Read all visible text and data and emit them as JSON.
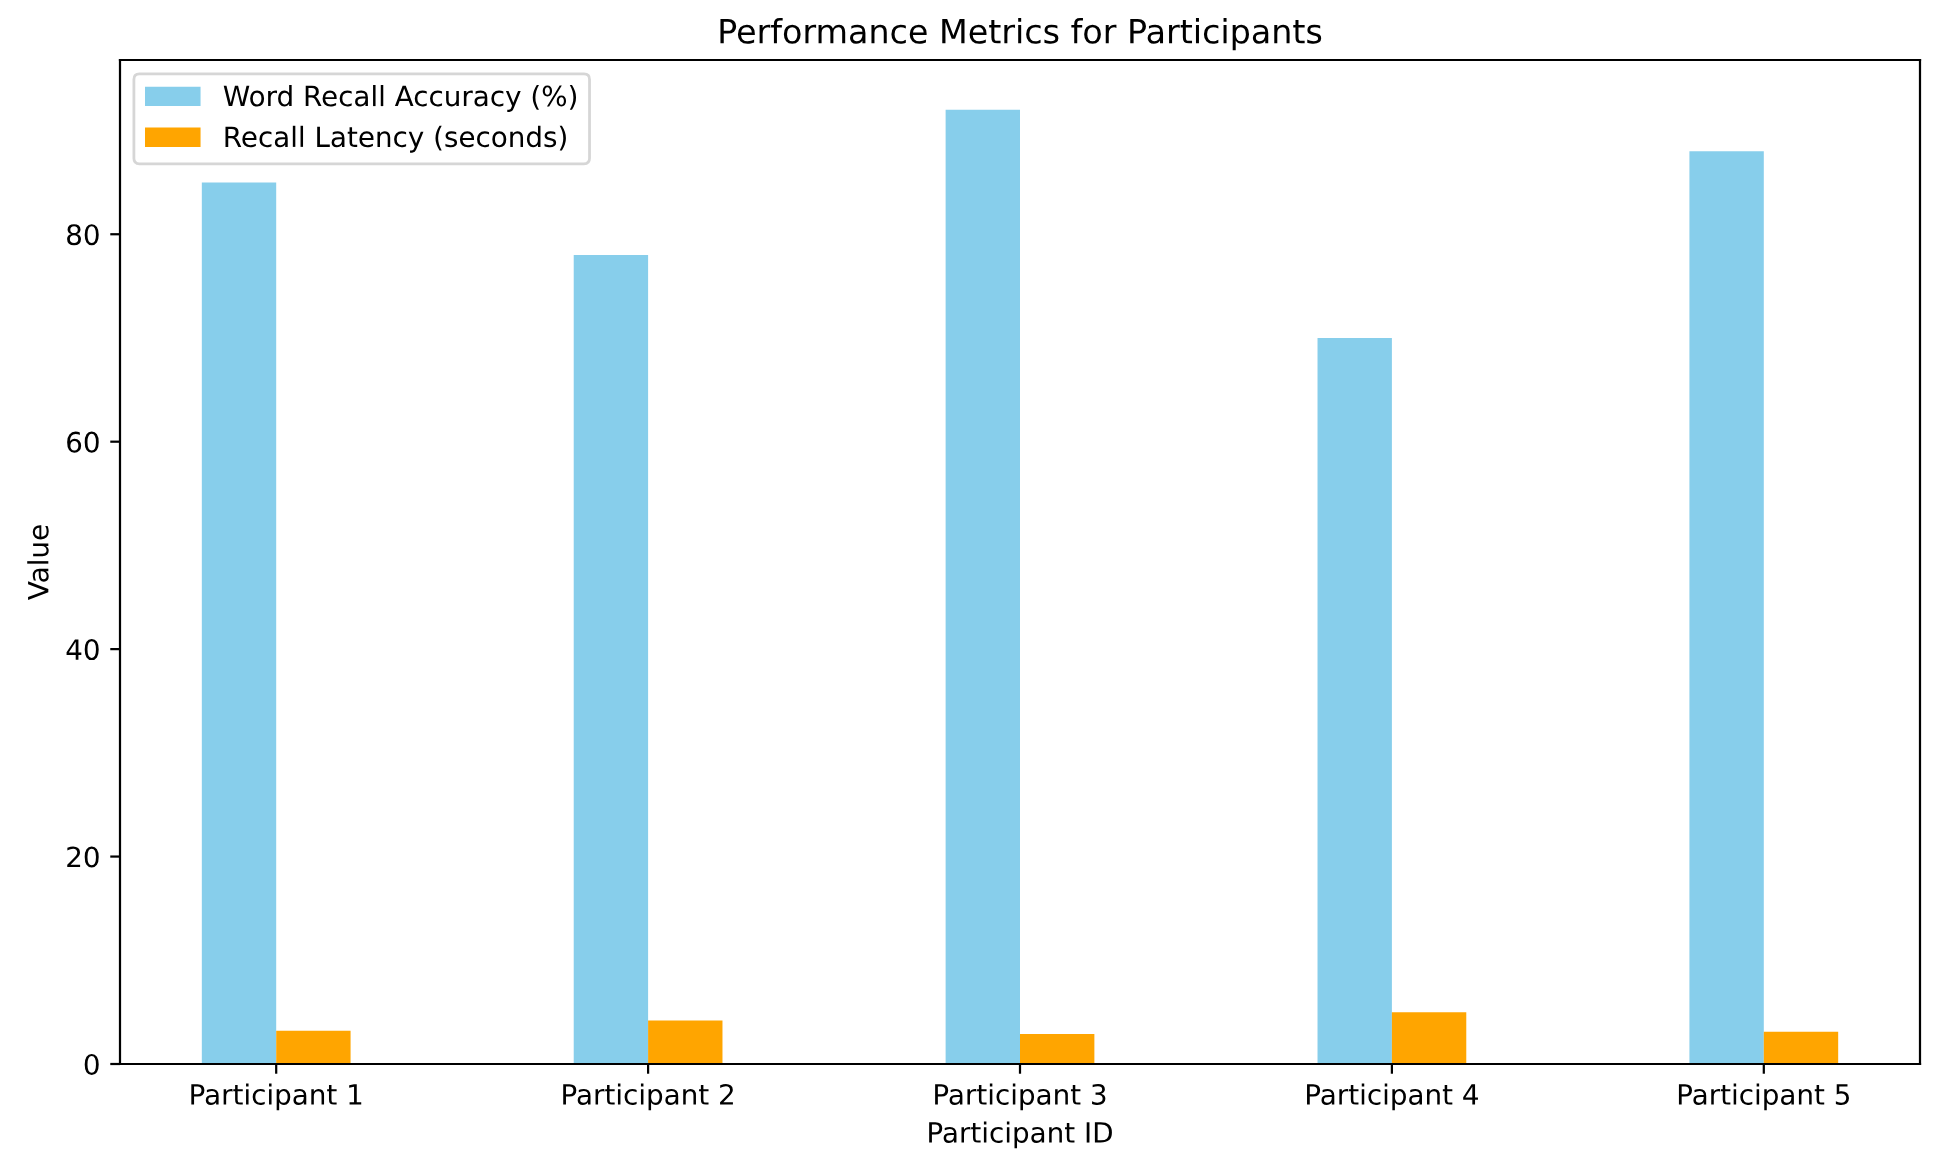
{
  "chart_data": {
    "type": "bar",
    "title": "Performance Metrics for Participants",
    "xlabel": "Participant ID",
    "ylabel": "Value",
    "categories": [
      "Participant 1",
      "Participant 2",
      "Participant 3",
      "Participant 4",
      "Participant 5"
    ],
    "series": [
      {
        "name": "Word Recall Accuracy (%)",
        "color": "#87ceeb",
        "values": [
          85,
          78,
          92,
          70,
          88
        ]
      },
      {
        "name": "Recall Latency (seconds)",
        "color": "#ffa500",
        "values": [
          3.2,
          4.2,
          2.9,
          5.0,
          3.1
        ]
      }
    ],
    "ylim": [
      0,
      96.8
    ],
    "yticks": [
      0,
      20,
      40,
      60,
      80
    ],
    "grid": false,
    "legend": "top left"
  }
}
